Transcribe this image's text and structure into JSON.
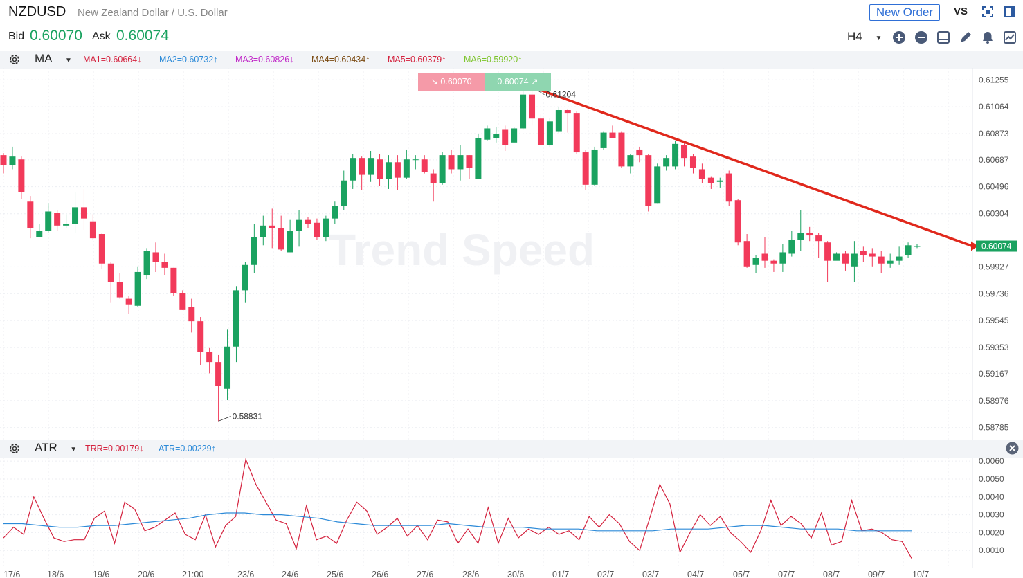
{
  "header": {
    "symbol": "NZDUSD",
    "symbol_name": "New Zealand Dollar / U.S. Dollar",
    "new_order_label": "New Order",
    "vs_label": "VS",
    "bid_label": "Bid",
    "bid_value": "0.60070",
    "ask_label": "Ask",
    "ask_value": "0.60074",
    "timeframe": "H4"
  },
  "ma_bar": {
    "indicator": "MA",
    "items": [
      {
        "label": "MA1=0.60664↓",
        "color": "#d4213d"
      },
      {
        "label": "MA2=0.60732↑",
        "color": "#2c8ad8"
      },
      {
        "label": "MA3=0.60826↓",
        "color": "#c026c7"
      },
      {
        "label": "MA4=0.60434↑",
        "color": "#7a4a12"
      },
      {
        "label": "MA5=0.60379↑",
        "color": "#d4213d"
      },
      {
        "label": "MA6=0.59920↑",
        "color": "#7cc42a"
      }
    ]
  },
  "quote_boxes": {
    "sell": "↘ 0.60070",
    "buy": "0.60074 ↗"
  },
  "watermark": "Trend Speed",
  "atr_bar": {
    "indicator": "ATR",
    "items": [
      {
        "label": "TRR=0.00179↓",
        "color": "#d4213d"
      },
      {
        "label": "ATR=0.00229↑",
        "color": "#2c8ad8"
      }
    ]
  },
  "colors": {
    "up": "#1aa260",
    "down": "#f23a5a",
    "trendline": "#e0281c",
    "last_price_tag": "#1aa260"
  },
  "icons": [
    "settings-icon",
    "zoom-in-icon",
    "zoom-out-icon",
    "layout-icon",
    "pencil-icon",
    "bell-icon",
    "chart-icon",
    "fullscreen-icon",
    "panel-icon",
    "close-icon"
  ],
  "x_labels": [
    "17/6",
    "18/6",
    "19/6",
    "20/6",
    "21:00",
    "23/6",
    "24/6",
    "25/6",
    "26/6",
    "27/6",
    "28/6",
    "30/6",
    "01/7",
    "02/7",
    "03/7",
    "04/7",
    "05/7",
    "07/7",
    "08/7",
    "09/7",
    "10/7"
  ],
  "chart_data": [
    {
      "type": "candlestick",
      "y_ticks": [
        "0.61255",
        "0.61064",
        "0.60873",
        "0.60687",
        "0.60496",
        "0.60304",
        "0.59927",
        "0.59736",
        "0.59545",
        "0.59353",
        "0.59167",
        "0.58976",
        "0.58785"
      ],
      "ylim": [
        0.587,
        0.6134
      ],
      "last_price": "0.60074",
      "annotations": [
        {
          "label": "0.61204",
          "value": 0.61204
        },
        {
          "label": "0.58831",
          "value": 0.58831
        }
      ],
      "candles": [
        [
          0.6072,
          0.6065,
          0.6059,
          0.60735
        ],
        [
          0.6065,
          0.6071,
          0.6062,
          0.6078
        ],
        [
          0.6069,
          0.6046,
          0.6041,
          0.6071
        ],
        [
          0.6039,
          0.602,
          0.6013,
          0.6043
        ],
        [
          0.6014,
          0.6018,
          0.6014,
          0.6023
        ],
        [
          0.6018,
          0.6032,
          0.6017,
          0.6038
        ],
        [
          0.6031,
          0.6022,
          0.6018,
          0.6033
        ],
        [
          0.6022,
          0.6023,
          0.602,
          0.603
        ],
        [
          0.6023,
          0.6035,
          0.6017,
          0.6046
        ],
        [
          0.6035,
          0.6027,
          0.6019,
          0.6048
        ],
        [
          0.6025,
          0.6013,
          0.6012,
          0.603
        ],
        [
          0.6016,
          0.5995,
          0.5991,
          0.6017
        ],
        [
          0.5995,
          0.5982,
          0.5967,
          0.5996
        ],
        [
          0.5982,
          0.5971,
          0.597,
          0.5988
        ],
        [
          0.597,
          0.5966,
          0.5959,
          0.5972
        ],
        [
          0.5965,
          0.5989,
          0.5964,
          0.5993
        ],
        [
          0.5987,
          0.6004,
          0.5984,
          0.6006
        ],
        [
          0.6003,
          0.5996,
          0.5989,
          0.601
        ],
        [
          0.5996,
          0.5992,
          0.5987,
          0.6002
        ],
        [
          0.5992,
          0.5974,
          0.5972,
          0.5992
        ],
        [
          0.5974,
          0.5962,
          0.5962,
          0.5976
        ],
        [
          0.5964,
          0.5954,
          0.5946,
          0.597
        ],
        [
          0.5954,
          0.5932,
          0.5923,
          0.5957
        ],
        [
          0.5932,
          0.5925,
          0.5917,
          0.5935
        ],
        [
          0.5925,
          0.5908,
          0.58831,
          0.593
        ],
        [
          0.5906,
          0.5936,
          0.5898,
          0.5948
        ],
        [
          0.5936,
          0.5976,
          0.5925,
          0.5979
        ],
        [
          0.5976,
          0.5994,
          0.5967,
          0.5996
        ],
        [
          0.5994,
          0.6014,
          0.5988,
          0.6023
        ],
        [
          0.6014,
          0.6022,
          0.6008,
          0.6029
        ],
        [
          0.6022,
          0.602,
          0.6006,
          0.6034
        ],
        [
          0.602,
          0.6005,
          0.6004,
          0.6029
        ],
        [
          0.6003,
          0.6018,
          0.6003,
          0.6026
        ],
        [
          0.6018,
          0.6026,
          0.6007,
          0.6033
        ],
        [
          0.6026,
          0.6023,
          0.602,
          0.6028
        ],
        [
          0.6024,
          0.6014,
          0.6012,
          0.6027
        ],
        [
          0.6014,
          0.6027,
          0.6011,
          0.6029
        ],
        [
          0.6027,
          0.6036,
          0.6023,
          0.6039
        ],
        [
          0.6036,
          0.6054,
          0.6033,
          0.6061
        ],
        [
          0.6054,
          0.607,
          0.6048,
          0.6073
        ],
        [
          0.607,
          0.6058,
          0.6047,
          0.6071
        ],
        [
          0.6058,
          0.607,
          0.6053,
          0.6075
        ],
        [
          0.6069,
          0.6055,
          0.605,
          0.6073
        ],
        [
          0.6055,
          0.6067,
          0.6048,
          0.6072
        ],
        [
          0.6067,
          0.6056,
          0.6047,
          0.6072
        ],
        [
          0.6056,
          0.6069,
          0.6055,
          0.6076
        ],
        [
          0.6069,
          0.6069,
          0.6062,
          0.6072
        ],
        [
          0.6069,
          0.606,
          0.6059,
          0.6072
        ],
        [
          0.6059,
          0.6052,
          0.6039,
          0.6062
        ],
        [
          0.6052,
          0.6072,
          0.6051,
          0.6074
        ],
        [
          0.6072,
          0.6062,
          0.6059,
          0.6076
        ],
        [
          0.6062,
          0.6072,
          0.6054,
          0.6079
        ],
        [
          0.6072,
          0.6063,
          0.6055,
          0.6072
        ],
        [
          0.6055,
          0.6084,
          0.6055,
          0.6087
        ],
        [
          0.6083,
          0.6091,
          0.6082,
          0.6093
        ],
        [
          0.6084,
          0.6087,
          0.6081,
          0.6092
        ],
        [
          0.609,
          0.6079,
          0.6075,
          0.6093
        ],
        [
          0.6081,
          0.6091,
          0.6081,
          0.6092
        ],
        [
          0.6091,
          0.6115,
          0.609,
          0.6118
        ],
        [
          0.6115,
          0.6098,
          0.6093,
          0.61204
        ],
        [
          0.6098,
          0.6079,
          0.6079,
          0.6101
        ],
        [
          0.6079,
          0.6096,
          0.6078,
          0.6098
        ],
        [
          0.6089,
          0.6104,
          0.6088,
          0.6106
        ],
        [
          0.6104,
          0.6102,
          0.6088,
          0.6105
        ],
        [
          0.6102,
          0.6074,
          0.6073,
          0.6103
        ],
        [
          0.6074,
          0.6051,
          0.6047,
          0.6076
        ],
        [
          0.6051,
          0.6076,
          0.605,
          0.6078
        ],
        [
          0.6077,
          0.6088,
          0.6076,
          0.6089
        ],
        [
          0.6088,
          0.6084,
          0.6084,
          0.6093
        ],
        [
          0.6088,
          0.6064,
          0.6063,
          0.6089
        ],
        [
          0.6064,
          0.6072,
          0.6059,
          0.6073
        ],
        [
          0.6076,
          0.6072,
          0.6067,
          0.6078
        ],
        [
          0.6072,
          0.6036,
          0.6032,
          0.6073
        ],
        [
          0.6038,
          0.6064,
          0.6038,
          0.6066
        ],
        [
          0.6064,
          0.607,
          0.6061,
          0.6072
        ],
        [
          0.6064,
          0.608,
          0.6062,
          0.6082
        ],
        [
          0.6079,
          0.607,
          0.6064,
          0.6081
        ],
        [
          0.6071,
          0.6063,
          0.6059,
          0.6073
        ],
        [
          0.6062,
          0.6055,
          0.6052,
          0.6066
        ],
        [
          0.6056,
          0.6052,
          0.6048,
          0.6057
        ],
        [
          0.6053,
          0.6054,
          0.6049,
          0.6056
        ],
        [
          0.6059,
          0.6039,
          0.6036,
          0.6061
        ],
        [
          0.604,
          0.601,
          0.6008,
          0.6041
        ],
        [
          0.6011,
          0.5993,
          0.5992,
          0.6016
        ],
        [
          0.5994,
          0.5999,
          0.5988,
          0.6001
        ],
        [
          0.6002,
          0.5997,
          0.5992,
          0.6014
        ],
        [
          0.5997,
          0.5995,
          0.5989,
          0.5998
        ],
        [
          0.5995,
          0.6003,
          0.5989,
          0.6009
        ],
        [
          0.6002,
          0.6012,
          0.6,
          0.6018
        ],
        [
          0.6012,
          0.6017,
          0.6004,
          0.6033
        ],
        [
          0.6017,
          0.6015,
          0.6011,
          0.6021
        ],
        [
          0.6015,
          0.6011,
          0.5999,
          0.6017
        ],
        [
          0.601,
          0.5997,
          0.5982,
          0.6011
        ],
        [
          0.5997,
          0.6002,
          0.5998,
          0.6003
        ],
        [
          0.6002,
          0.5995,
          0.599,
          0.6004
        ],
        [
          0.5993,
          0.6002,
          0.5982,
          0.6011
        ],
        [
          0.6004,
          0.6001,
          0.5996,
          0.6007
        ],
        [
          0.6002,
          0.6,
          0.5993,
          0.6006
        ],
        [
          0.6,
          0.5995,
          0.5988,
          0.6004
        ],
        [
          0.5995,
          0.5997,
          0.5992,
          0.6002
        ],
        [
          0.5997,
          0.6,
          0.5994,
          0.6007
        ],
        [
          0.6001,
          0.6008,
          0.5999,
          0.601
        ],
        [
          0.6007,
          0.60074,
          0.6006,
          0.6009
        ]
      ]
    },
    {
      "type": "line",
      "y_ticks": [
        "0.0060",
        "0.0050",
        "0.0040",
        "0.0030",
        "0.0020",
        "0.0010"
      ],
      "ylim": [
        0.0,
        0.0062
      ],
      "series": [
        {
          "name": "TRR",
          "color": "#d4213d",
          "values": [
            0.0017,
            0.0023,
            0.0019,
            0.004,
            0.0028,
            0.0017,
            0.0015,
            0.0016,
            0.0016,
            0.0028,
            0.0032,
            0.0014,
            0.0037,
            0.0033,
            0.0021,
            0.0023,
            0.0027,
            0.0031,
            0.0019,
            0.0016,
            0.003,
            0.0012,
            0.0024,
            0.0029,
            0.0061,
            0.0047,
            0.0037,
            0.0027,
            0.0025,
            0.0011,
            0.0035,
            0.0016,
            0.0018,
            0.0014,
            0.0027,
            0.0037,
            0.0032,
            0.0019,
            0.0023,
            0.0028,
            0.0018,
            0.0024,
            0.0016,
            0.0027,
            0.0026,
            0.0014,
            0.0022,
            0.0014,
            0.0034,
            0.0014,
            0.0028,
            0.0017,
            0.0022,
            0.0019,
            0.0023,
            0.0019,
            0.0021,
            0.0016,
            0.0029,
            0.0023,
            0.003,
            0.0025,
            0.0015,
            0.001,
            0.0028,
            0.0047,
            0.0036,
            0.0009,
            0.002,
            0.003,
            0.0024,
            0.0029,
            0.002,
            0.0015,
            0.0009,
            0.0021,
            0.0038,
            0.0024,
            0.0029,
            0.0025,
            0.0017,
            0.0031,
            0.0013,
            0.0015,
            0.0038,
            0.0021,
            0.0022,
            0.002,
            0.0016,
            0.0015,
            0.0005
          ]
        },
        {
          "name": "ATR",
          "color": "#2c8ad8",
          "values": [
            0.0025,
            0.0025,
            0.0024,
            0.0023,
            0.0023,
            0.0024,
            0.0024,
            0.0025,
            0.0026,
            0.0027,
            0.0028,
            0.003,
            0.0031,
            0.0031,
            0.003,
            0.003,
            0.0029,
            0.0028,
            0.0026,
            0.0025,
            0.0024,
            0.0024,
            0.0024,
            0.0024,
            0.0025,
            0.0024,
            0.0023,
            0.0023,
            0.0023,
            0.0022,
            0.0022,
            0.0022,
            0.0021,
            0.0021,
            0.0021,
            0.0021,
            0.0022,
            0.0022,
            0.0022,
            0.0023,
            0.0024,
            0.0024,
            0.0023,
            0.0022,
            0.0022,
            0.0022,
            0.0021,
            0.0021,
            0.0021,
            0.0021
          ]
        }
      ]
    }
  ]
}
